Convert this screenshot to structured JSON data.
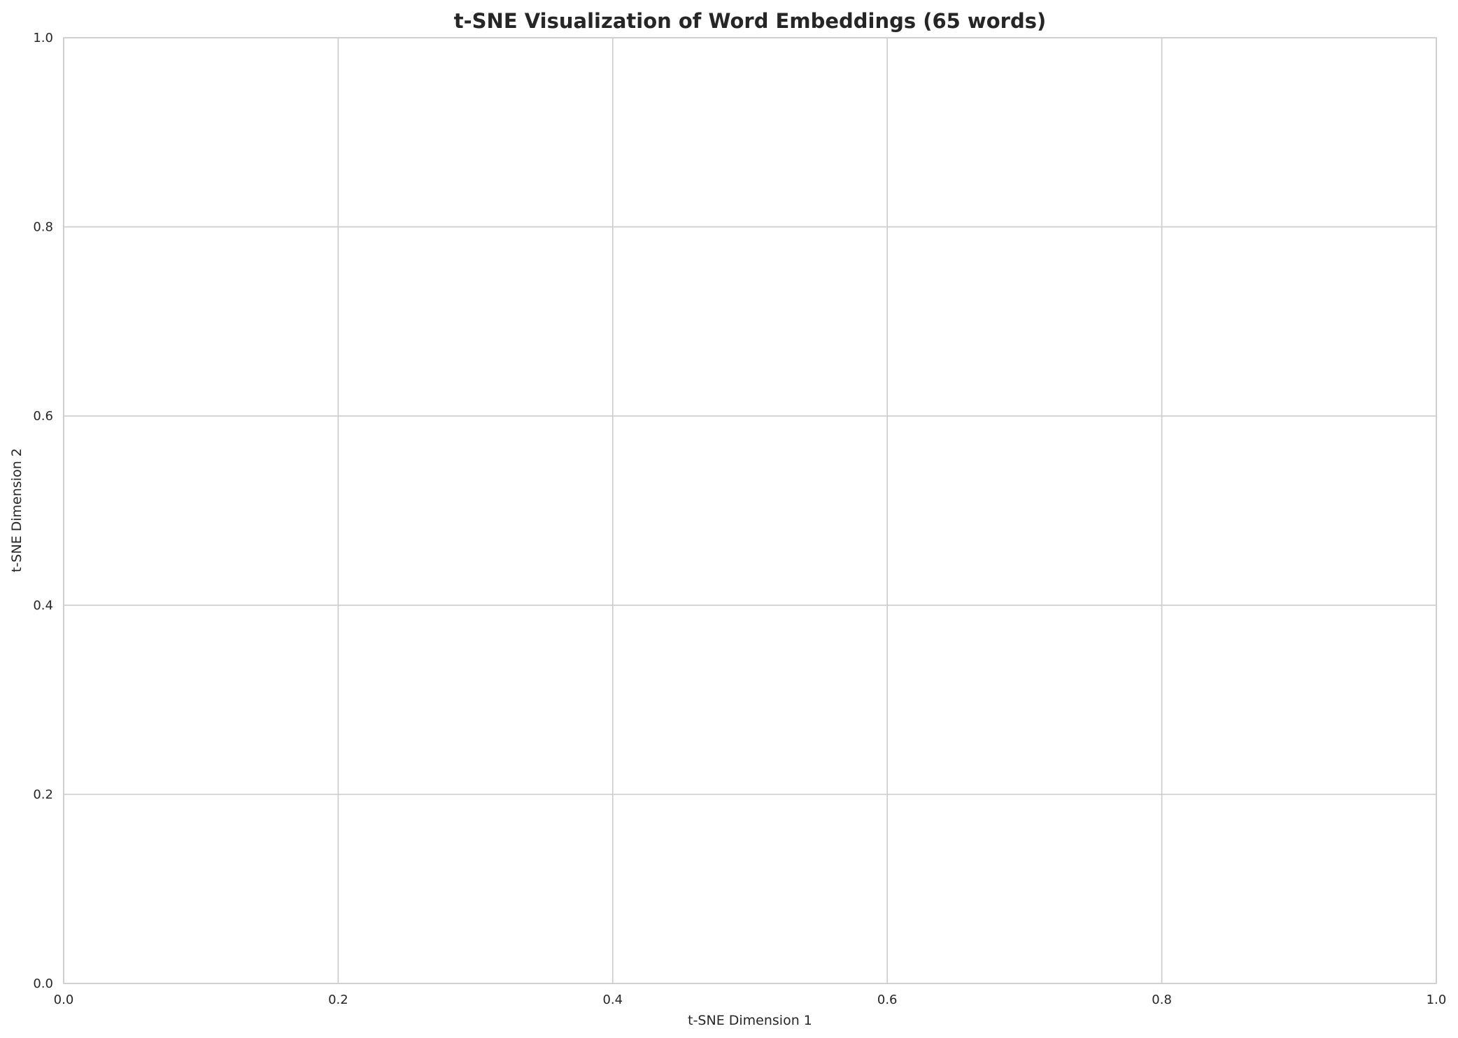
{
  "chart_data": {
    "type": "scatter",
    "title": "t-SNE Visualization of Word Embeddings (65 words)",
    "xlabel": "t-SNE Dimension 1",
    "ylabel": "t-SNE Dimension 2",
    "xlim": [
      0,
      1
    ],
    "ylim": [
      0,
      1
    ],
    "xticks": [
      "0.0",
      "0.2",
      "0.4",
      "0.6",
      "0.8",
      "1.0"
    ],
    "yticks": [
      "0.0",
      "0.2",
      "0.4",
      "0.6",
      "0.8",
      "1.0"
    ],
    "grid": true,
    "points": [],
    "colors": {
      "grid": "#cccccc",
      "spine": "#cccccc",
      "text": "#262626"
    }
  }
}
